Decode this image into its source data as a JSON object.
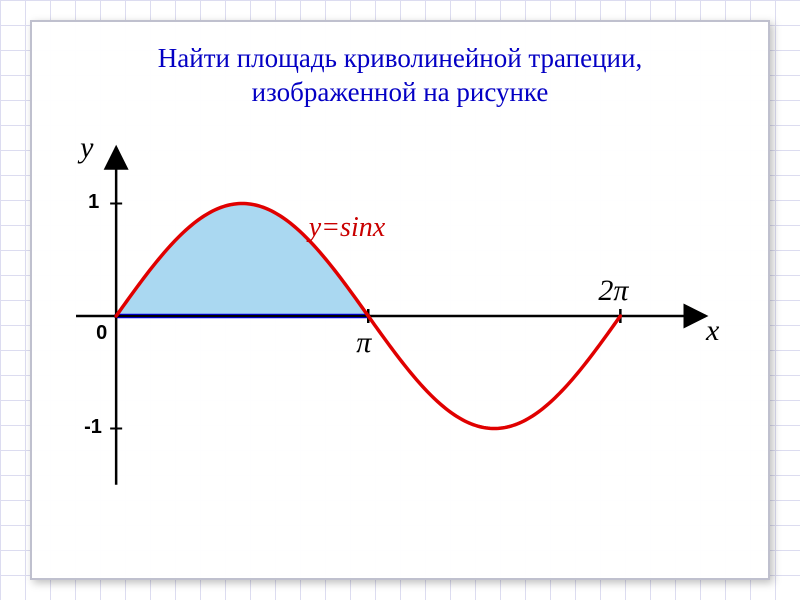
{
  "title_line1": "Найти площадь криволинейной трапеции,",
  "title_line2": "изображенной на рисунке",
  "chart": {
    "type": "line",
    "function_label": "y=sinx",
    "x_axis_label": "x",
    "y_axis_label": "y",
    "x_ticks": [
      {
        "value": 3.14159,
        "label": "π"
      },
      {
        "value": 6.28318,
        "label": "2π"
      }
    ],
    "y_ticks": [
      {
        "value": 1,
        "label": "1"
      },
      {
        "value": -1,
        "label": "-1"
      }
    ],
    "origin_label": "0",
    "fill_region": {
      "from": 0,
      "to": 3.14159
    },
    "colors": {
      "title": "#0400c4",
      "curve": "#e00000",
      "fill": "#9bd1ef",
      "fill_opacity": 0.85,
      "baseline": "#0000ff",
      "axis": "#000000",
      "background": "#ffffff",
      "grid": "#dcdcf0",
      "frame_border": "#bfc0ce"
    },
    "stroke_width": {
      "curve": 3.5,
      "axis": 2.5,
      "baseline": 4.5
    },
    "font": {
      "title_size": 27,
      "axis_label_size": 30,
      "tick_fontsize": 20,
      "func_label_fontsize": 28
    },
    "domain_x": [
      -0.6,
      7.5
    ],
    "domain_y": [
      -1.6,
      1.6
    ]
  }
}
